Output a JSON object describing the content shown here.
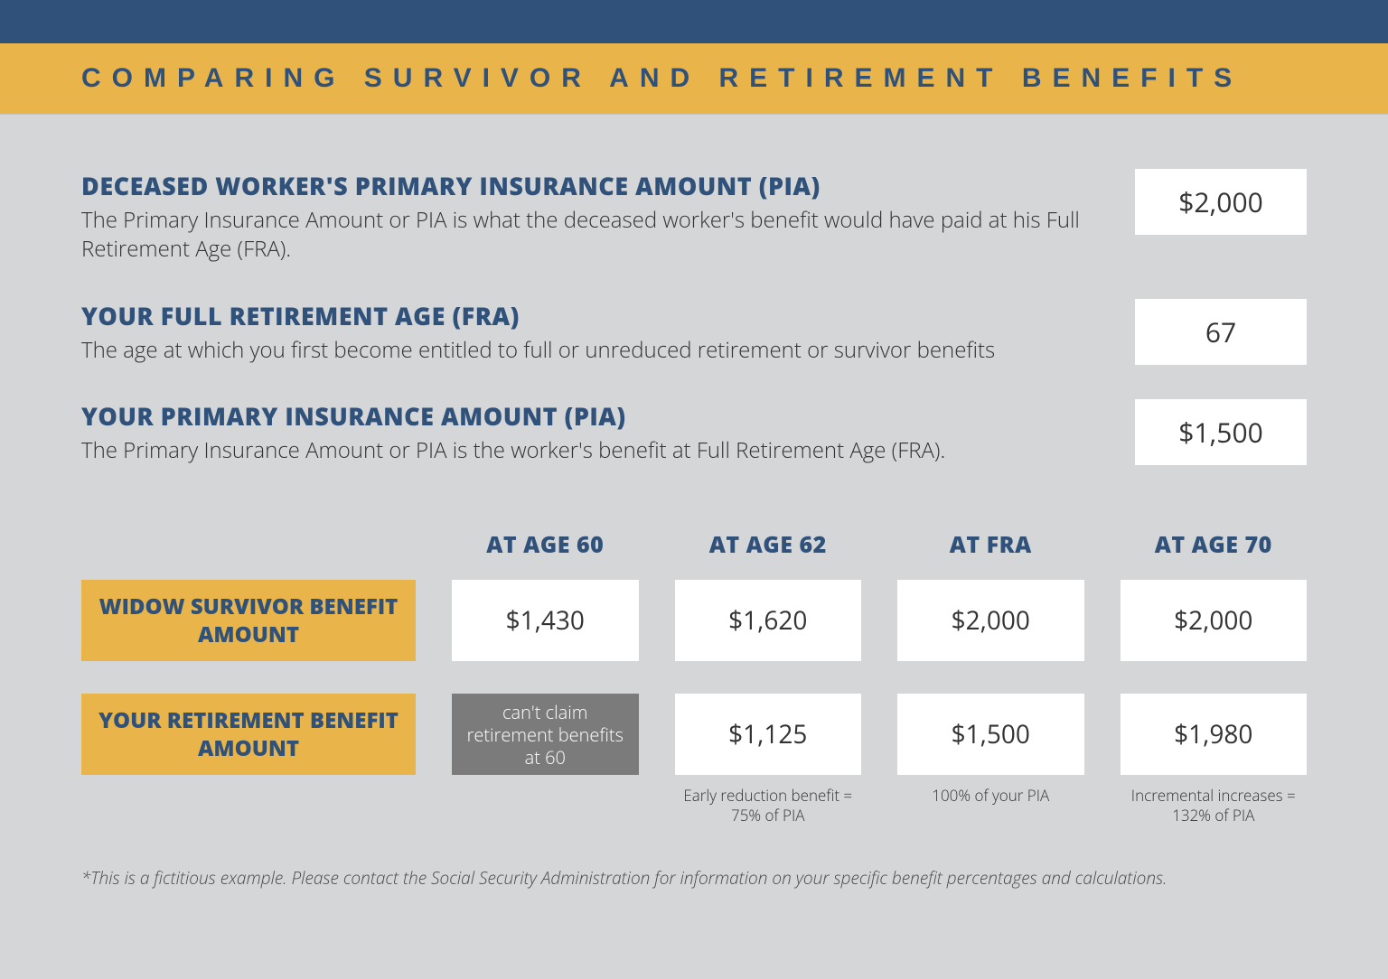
{
  "colors": {
    "navy": "#2f517a",
    "gold": "#e9b54b",
    "page_bg": "#d5d6d8",
    "cell_bg": "#ffffff",
    "disabled_bg": "#7b7b7b"
  },
  "title": "COMPARING SURVIVOR AND RETIREMENT BENEFITS",
  "info": [
    {
      "label": "DECEASED WORKER'S PRIMARY INSURANCE AMOUNT (PIA)",
      "desc": "The Primary Insurance Amount or PIA is what the deceased worker's benefit would have paid at his Full Retirement Age (FRA).",
      "value": "$2,000"
    },
    {
      "label": "YOUR FULL RETIREMENT AGE (FRA)",
      "desc": "The age at which you first become entitled to full or unreduced retirement or survivor benefits",
      "value": "67"
    },
    {
      "label": "YOUR PRIMARY INSURANCE AMOUNT (PIA)",
      "desc": "The Primary Insurance Amount or PIA is the worker's benefit at Full Retirement Age (FRA).",
      "value": "$1,500"
    }
  ],
  "table": {
    "columns": [
      "AT AGE 60",
      "AT AGE 62",
      "AT FRA",
      "AT AGE 70"
    ],
    "rows": [
      {
        "label": "WIDOW SURVIVOR BENEFIT AMOUNT",
        "cells": [
          {
            "value": "$1,430",
            "disabled": false
          },
          {
            "value": "$1,620",
            "disabled": false
          },
          {
            "value": "$2,000",
            "disabled": false
          },
          {
            "value": "$2,000",
            "disabled": false
          }
        ],
        "notes": [
          "",
          "",
          "",
          ""
        ]
      },
      {
        "label": "YOUR RETIREMENT BENEFIT AMOUNT",
        "cells": [
          {
            "value": "can't claim retirement benefits at 60",
            "disabled": true
          },
          {
            "value": "$1,125",
            "disabled": false
          },
          {
            "value": "$1,500",
            "disabled": false
          },
          {
            "value": "$1,980",
            "disabled": false
          }
        ],
        "notes": [
          "",
          "Early reduction benefit = 75% of PIA",
          "100% of your PIA",
          "Incremental increases = 132% of PIA"
        ]
      }
    ]
  },
  "footnote": "*This is a fictitious example. Please contact the Social Security Administration for information on your specific benefit percentages and calculations."
}
